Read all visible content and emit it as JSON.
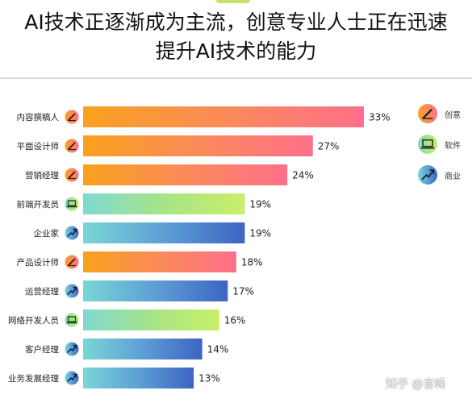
{
  "title": {
    "line1": "AI技术正逐渐成为主流，创意专业人士正在迅速",
    "line2": "提升AI技术的能力"
  },
  "legend": [
    {
      "label": "创意",
      "icon": "pencil-icon",
      "color": "#f59a3a"
    },
    {
      "label": "软件",
      "icon": "laptop-icon",
      "color": "#9fe090"
    },
    {
      "label": "商业",
      "icon": "trend-icon",
      "color": "#3a74c4"
    }
  ],
  "watermark": "知乎 @言峰",
  "chart_data": {
    "type": "bar",
    "orientation": "horizontal",
    "categories": [
      "内容撰稿人",
      "平面设计师",
      "营销经理",
      "前端开发员",
      "企业家",
      "产品设计师",
      "运营经理",
      "网络开发人员",
      "客户经理",
      "业务发展经理"
    ],
    "values": [
      33,
      27,
      24,
      19,
      19,
      18,
      17,
      16,
      14,
      13
    ],
    "value_labels": [
      "33%",
      "27%",
      "24%",
      "19%",
      "19%",
      "18%",
      "17%",
      "16%",
      "14%",
      "13%"
    ],
    "groups": [
      "创意",
      "创意",
      "创意",
      "软件",
      "商业",
      "创意",
      "商业",
      "软件",
      "商业",
      "商业"
    ],
    "unit": "%",
    "xlim": [
      0,
      33
    ],
    "grid": false,
    "legend_position": "right",
    "group_styles": {
      "创意": {
        "icon": "pencil-icon",
        "gradient": [
          "#f9a11d",
          "#fb8b5a",
          "#fe6f8a"
        ]
      },
      "软件": {
        "icon": "laptop-icon",
        "gradient": [
          "#7fd9d0",
          "#a7e488",
          "#c9ee6a"
        ]
      },
      "商业": {
        "icon": "trend-icon",
        "gradient": [
          "#7ad6d6",
          "#5d9fd6",
          "#3e64c2"
        ]
      }
    }
  }
}
